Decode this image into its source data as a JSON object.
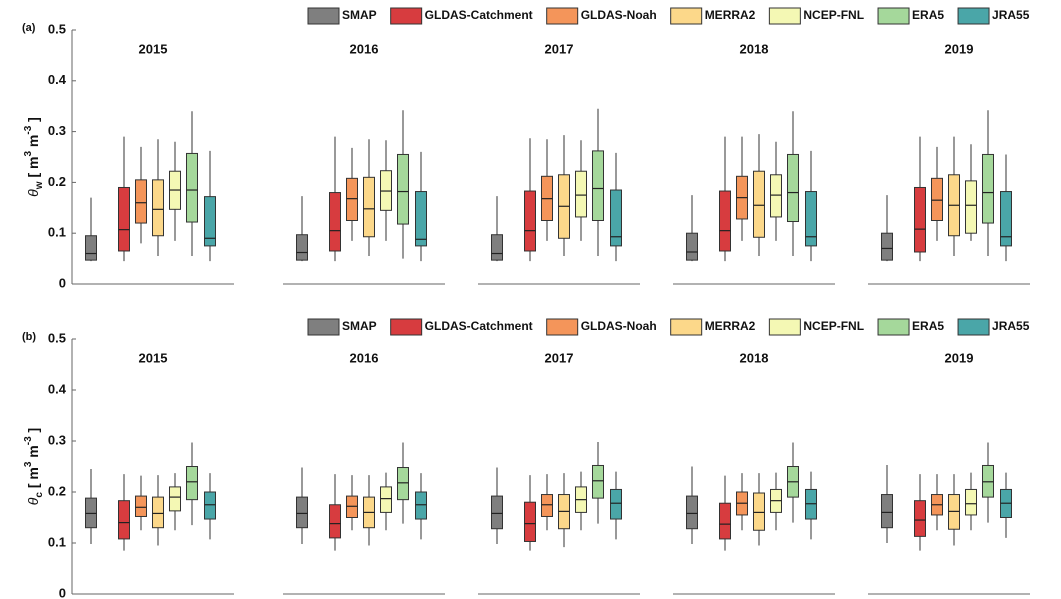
{
  "chart_data": [
    {
      "type": "box",
      "panel": "(a)",
      "ylabel": [
        "θ",
        "w",
        " [ m",
        "3",
        " m",
        "-3",
        " ]"
      ],
      "years": [
        "2015",
        "2016",
        "2017",
        "2018",
        "2019"
      ],
      "ylim": [
        0,
        0.5
      ],
      "yticks": [
        0,
        0.1,
        0.2,
        0.3,
        0.4,
        0.5
      ],
      "series": [
        {
          "name": "SMAP",
          "color": "#7f7f7f",
          "min": [
            0.045,
            0.045,
            0.045,
            0.045,
            0.045
          ],
          "q1": [
            0.047,
            0.047,
            0.047,
            0.047,
            0.047
          ],
          "median": [
            0.06,
            0.062,
            0.06,
            0.063,
            0.07
          ],
          "q3": [
            0.095,
            0.097,
            0.097,
            0.1,
            0.1
          ],
          "max": [
            0.17,
            0.173,
            0.173,
            0.175,
            0.175
          ]
        },
        {
          "name": "GLDAS-Catchment",
          "color": "#d73c3f",
          "min": [
            0.045,
            0.045,
            0.045,
            0.045,
            0.045
          ],
          "q1": [
            0.065,
            0.065,
            0.065,
            0.065,
            0.063
          ],
          "median": [
            0.107,
            0.105,
            0.105,
            0.105,
            0.108
          ],
          "q3": [
            0.19,
            0.18,
            0.183,
            0.183,
            0.19
          ],
          "max": [
            0.29,
            0.29,
            0.287,
            0.29,
            0.29
          ]
        },
        {
          "name": "GLDAS-Noah",
          "color": "#f4955a",
          "min": [
            0.08,
            0.085,
            0.085,
            0.085,
            0.085
          ],
          "q1": [
            0.12,
            0.125,
            0.125,
            0.128,
            0.125
          ],
          "median": [
            0.16,
            0.168,
            0.168,
            0.17,
            0.165
          ],
          "q3": [
            0.205,
            0.208,
            0.212,
            0.212,
            0.208
          ],
          "max": [
            0.27,
            0.268,
            0.285,
            0.29,
            0.27
          ]
        },
        {
          "name": "MERRA2",
          "color": "#fcd88a",
          "min": [
            0.055,
            0.055,
            0.055,
            0.055,
            0.055
          ],
          "q1": [
            0.095,
            0.093,
            0.09,
            0.092,
            0.095
          ],
          "median": [
            0.147,
            0.148,
            0.153,
            0.155,
            0.155
          ],
          "q3": [
            0.205,
            0.21,
            0.215,
            0.222,
            0.215
          ],
          "max": [
            0.285,
            0.285,
            0.293,
            0.295,
            0.29
          ]
        },
        {
          "name": "NCEP-FNL",
          "color": "#f4f8b4",
          "min": [
            0.085,
            0.085,
            0.085,
            0.085,
            0.085
          ],
          "q1": [
            0.147,
            0.145,
            0.132,
            0.132,
            0.1
          ],
          "median": [
            0.185,
            0.183,
            0.175,
            0.175,
            0.155
          ],
          "q3": [
            0.222,
            0.223,
            0.222,
            0.215,
            0.203
          ],
          "max": [
            0.28,
            0.283,
            0.283,
            0.28,
            0.275
          ]
        },
        {
          "name": "ERA5",
          "color": "#a5d89b",
          "min": [
            0.055,
            0.05,
            0.055,
            0.055,
            0.055
          ],
          "q1": [
            0.122,
            0.118,
            0.125,
            0.123,
            0.12
          ],
          "median": [
            0.185,
            0.182,
            0.188,
            0.18,
            0.18
          ],
          "q3": [
            0.257,
            0.255,
            0.262,
            0.255,
            0.255
          ],
          "max": [
            0.34,
            0.342,
            0.345,
            0.34,
            0.342
          ]
        },
        {
          "name": "JRA55",
          "color": "#4aa6a8",
          "min": [
            0.045,
            0.045,
            0.045,
            0.045,
            0.045
          ],
          "q1": [
            0.075,
            0.075,
            0.075,
            0.075,
            0.075
          ],
          "median": [
            0.09,
            0.088,
            0.093,
            0.093,
            0.093
          ],
          "q3": [
            0.172,
            0.182,
            0.185,
            0.182,
            0.182
          ],
          "max": [
            0.262,
            0.26,
            0.258,
            0.262,
            0.255
          ]
        }
      ]
    },
    {
      "type": "box",
      "panel": "(b)",
      "ylabel": [
        "θ",
        "c",
        " [ m",
        "3",
        " m",
        "-3",
        " ]"
      ],
      "years": [
        "2015",
        "2016",
        "2017",
        "2018",
        "2019"
      ],
      "ylim": [
        0,
        0.5
      ],
      "yticks": [
        0,
        0.1,
        0.2,
        0.3,
        0.4,
        0.5
      ],
      "series": [
        {
          "name": "SMAP",
          "color": "#7f7f7f",
          "min": [
            0.098,
            0.098,
            0.098,
            0.098,
            0.1
          ],
          "q1": [
            0.13,
            0.13,
            0.128,
            0.128,
            0.13
          ],
          "median": [
            0.158,
            0.158,
            0.158,
            0.158,
            0.16
          ],
          "q3": [
            0.188,
            0.19,
            0.192,
            0.192,
            0.195
          ],
          "max": [
            0.245,
            0.248,
            0.248,
            0.25,
            0.253
          ]
        },
        {
          "name": "GLDAS-Catchment",
          "color": "#d73c3f",
          "min": [
            0.085,
            0.085,
            0.085,
            0.085,
            0.085
          ],
          "q1": [
            0.108,
            0.11,
            0.103,
            0.108,
            0.113
          ],
          "median": [
            0.14,
            0.138,
            0.138,
            0.137,
            0.145
          ],
          "q3": [
            0.183,
            0.175,
            0.18,
            0.178,
            0.183
          ],
          "max": [
            0.235,
            0.235,
            0.233,
            0.232,
            0.235
          ]
        },
        {
          "name": "GLDAS-Noah",
          "color": "#f4955a",
          "min": [
            0.125,
            0.125,
            0.125,
            0.125,
            0.125
          ],
          "q1": [
            0.152,
            0.15,
            0.152,
            0.155,
            0.155
          ],
          "median": [
            0.17,
            0.172,
            0.175,
            0.178,
            0.175
          ],
          "q3": [
            0.192,
            0.192,
            0.195,
            0.2,
            0.195
          ],
          "max": [
            0.232,
            0.233,
            0.235,
            0.237,
            0.235
          ]
        },
        {
          "name": "MERRA2",
          "color": "#fcd88a",
          "min": [
            0.095,
            0.095,
            0.092,
            0.095,
            0.095
          ],
          "q1": [
            0.13,
            0.13,
            0.128,
            0.125,
            0.127
          ],
          "median": [
            0.158,
            0.16,
            0.162,
            0.16,
            0.162
          ],
          "q3": [
            0.19,
            0.19,
            0.195,
            0.198,
            0.195
          ],
          "max": [
            0.233,
            0.233,
            0.237,
            0.237,
            0.235
          ]
        },
        {
          "name": "NCEP-FNL",
          "color": "#f4f8b4",
          "min": [
            0.125,
            0.125,
            0.125,
            0.125,
            0.125
          ],
          "q1": [
            0.163,
            0.16,
            0.16,
            0.16,
            0.155
          ],
          "median": [
            0.19,
            0.187,
            0.185,
            0.183,
            0.177
          ],
          "q3": [
            0.21,
            0.21,
            0.21,
            0.205,
            0.205
          ],
          "max": [
            0.237,
            0.238,
            0.24,
            0.238,
            0.238
          ]
        },
        {
          "name": "ERA5",
          "color": "#a5d89b",
          "min": [
            0.135,
            0.138,
            0.138,
            0.14,
            0.14
          ],
          "q1": [
            0.185,
            0.185,
            0.188,
            0.19,
            0.19
          ],
          "median": [
            0.22,
            0.218,
            0.222,
            0.22,
            0.22
          ],
          "q3": [
            0.25,
            0.248,
            0.252,
            0.25,
            0.252
          ],
          "max": [
            0.297,
            0.297,
            0.298,
            0.297,
            0.297
          ]
        },
        {
          "name": "JRA55",
          "color": "#4aa6a8",
          "min": [
            0.107,
            0.107,
            0.107,
            0.107,
            0.11
          ],
          "q1": [
            0.147,
            0.147,
            0.147,
            0.147,
            0.15
          ],
          "median": [
            0.175,
            0.175,
            0.178,
            0.177,
            0.178
          ],
          "q3": [
            0.2,
            0.2,
            0.205,
            0.205,
            0.205
          ],
          "max": [
            0.237,
            0.237,
            0.24,
            0.24,
            0.238
          ]
        }
      ]
    }
  ]
}
